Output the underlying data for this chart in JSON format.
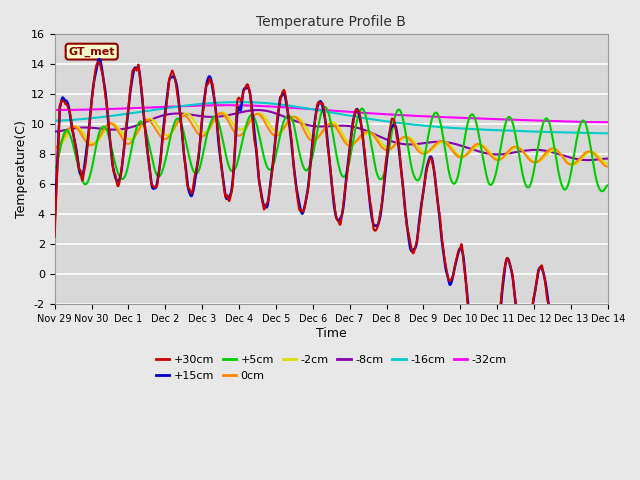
{
  "title": "Temperature Profile B",
  "xlabel": "Time",
  "ylabel": "Temperature(C)",
  "ylim": [
    -2,
    16
  ],
  "xlim": [
    0,
    15
  ],
  "xtick_labels": [
    "Nov 29",
    "Nov 30",
    "Dec 1",
    "Dec 2",
    "Dec 3",
    "Dec 4",
    "Dec 5",
    "Dec 6",
    "Dec 7",
    "Dec 8",
    "Dec 9",
    "Dec 10",
    "Dec 11",
    "Dec 12",
    "Dec 13",
    "Dec 14"
  ],
  "ytick_values": [
    -2,
    0,
    2,
    4,
    6,
    8,
    10,
    12,
    14,
    16
  ],
  "annotation_text": "GT_met",
  "series_colors": {
    "+30cm": "#cc0000",
    "+15cm": "#0000cc",
    "+5cm": "#00cc00",
    "0cm": "#ff8800",
    "-2cm": "#dddd00",
    "-8cm": "#8800aa",
    "-16cm": "#00cccc",
    "-32cm": "#ff00ff"
  },
  "background_color": "#d8d8d8",
  "fig_color": "#e8e8e8"
}
